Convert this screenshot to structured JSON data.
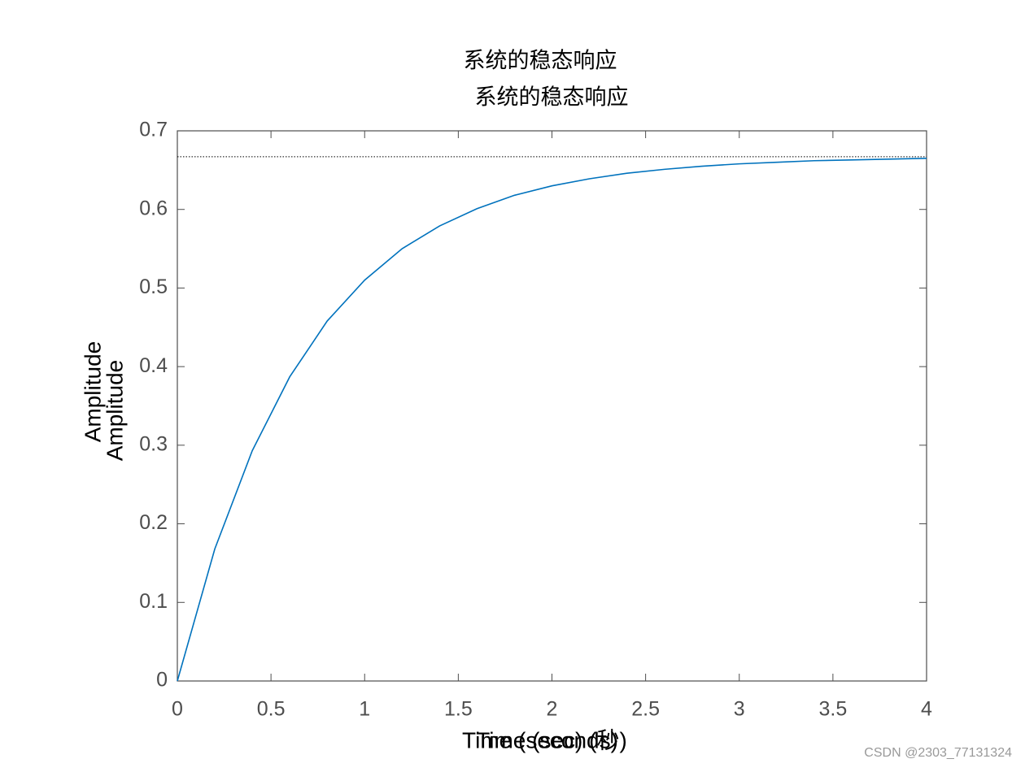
{
  "chart_data": {
    "type": "line",
    "titles": [
      "系统的稳态响应",
      "系统的稳态响应"
    ],
    "xlabels": [
      "Time (seconds)",
      "Time (sec) (秒)"
    ],
    "ylabels": [
      "Amplitude",
      "Amplitude"
    ],
    "x": [
      0,
      0.2,
      0.4,
      0.6,
      0.8,
      1.0,
      1.2,
      1.4,
      1.6,
      1.8,
      2.0,
      2.2,
      2.4,
      2.6,
      2.8,
      3.0,
      3.2,
      3.4,
      3.6,
      3.8,
      4.0
    ],
    "series": [
      {
        "color": "#0072bd",
        "values": [
          0,
          0.168,
          0.293,
          0.387,
          0.458,
          0.51,
          0.55,
          0.579,
          0.601,
          0.618,
          0.63,
          0.639,
          0.646,
          0.651,
          0.655,
          0.658,
          0.66,
          0.662,
          0.663,
          0.664,
          0.665
        ]
      }
    ],
    "steady_state": 0.667,
    "xlim": [
      0,
      4
    ],
    "xticks": [
      0,
      0.5,
      1,
      1.5,
      2,
      2.5,
      3,
      3.5,
      4
    ],
    "ylim": [
      0,
      0.7
    ],
    "yticks": [
      0,
      0.1,
      0.2,
      0.3,
      0.4,
      0.5,
      0.6,
      0.7
    ],
    "grid": false
  },
  "watermark": "CSDN @2303_77131324"
}
